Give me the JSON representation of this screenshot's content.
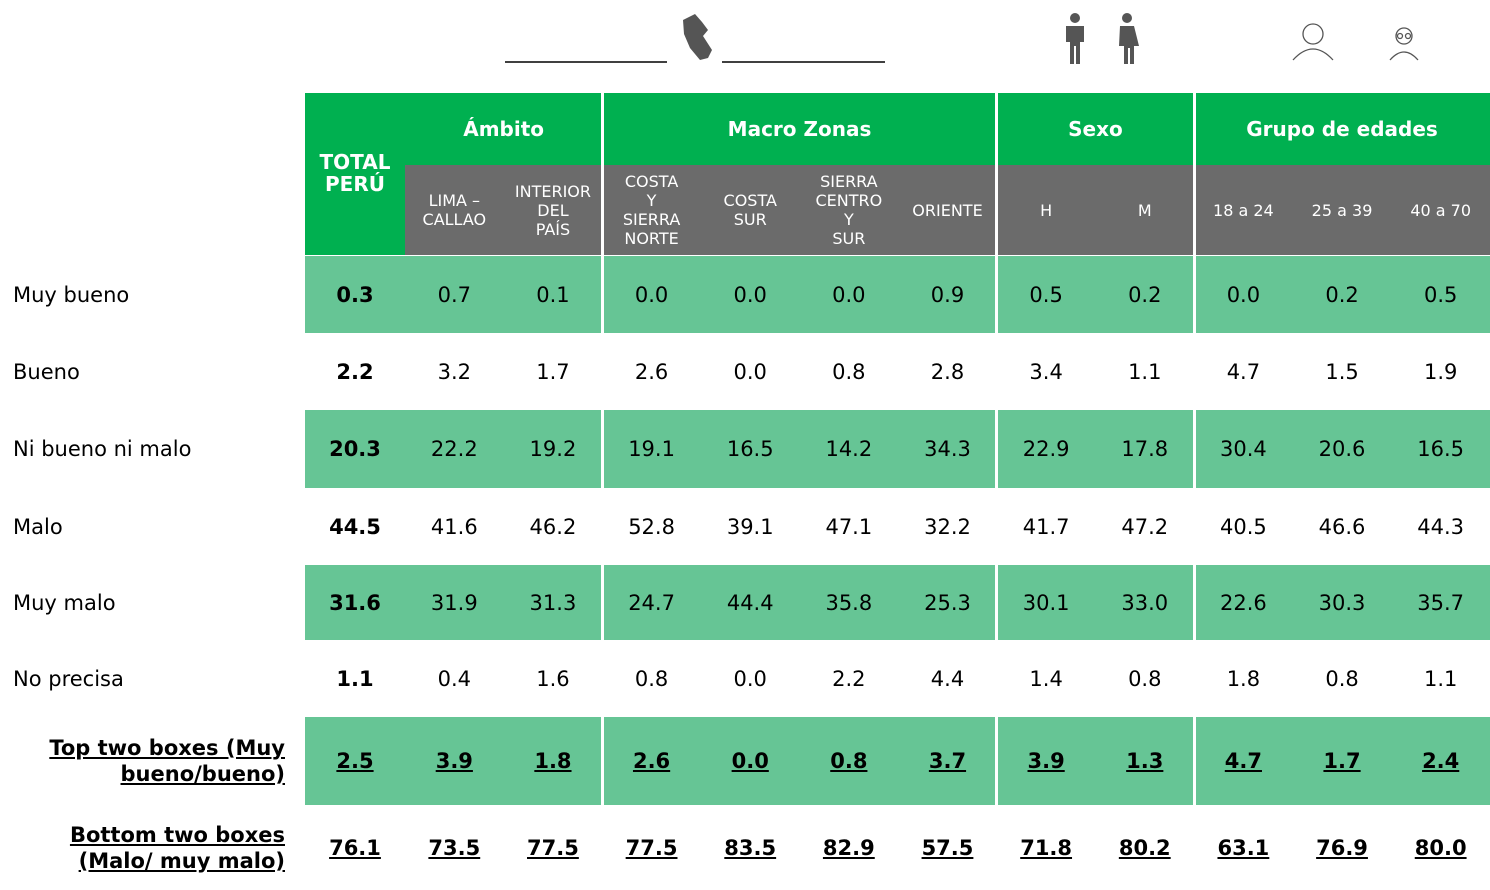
{
  "table": {
    "total_header": "TOTAL PERÚ",
    "groups": [
      {
        "name": "Ámbito",
        "columns": [
          "LIMA –\nCALLAO",
          "INTERIOR\nDEL\nPAÍS"
        ]
      },
      {
        "name": "Macro Zonas",
        "columns": [
          "COSTA\nY\nSIERRA\nNORTE",
          "COSTA\nSUR",
          "SIERRA\nCENTRO\nY\nSUR",
          "ORIENTE"
        ]
      },
      {
        "name": "Sexo",
        "columns": [
          "H",
          "M"
        ]
      },
      {
        "name": "Grupo de edades",
        "columns": [
          "18 a 24",
          "25 a 39",
          "40 a 70"
        ]
      }
    ],
    "rows": [
      {
        "label": "Muy bueno",
        "values": [
          "0.3",
          "0.7",
          "0.1",
          "0.0",
          "0.0",
          "0.0",
          "0.9",
          "0.5",
          "0.2",
          "0.0",
          "0.2",
          "0.5"
        ]
      },
      {
        "label": "Bueno",
        "values": [
          "2.2",
          "3.2",
          "1.7",
          "2.6",
          "0.0",
          "0.8",
          "2.8",
          "3.4",
          "1.1",
          "4.7",
          "1.5",
          "1.9"
        ]
      },
      {
        "label": "Ni bueno ni malo",
        "values": [
          "20.3",
          "22.2",
          "19.2",
          "19.1",
          "16.5",
          "14.2",
          "34.3",
          "22.9",
          "17.8",
          "30.4",
          "20.6",
          "16.5"
        ]
      },
      {
        "label": "Malo",
        "values": [
          "44.5",
          "41.6",
          "46.2",
          "52.8",
          "39.1",
          "47.1",
          "32.2",
          "41.7",
          "47.2",
          "40.5",
          "46.6",
          "44.3"
        ]
      },
      {
        "label": "Muy malo",
        "values": [
          "31.6",
          "31.9",
          "31.3",
          "24.7",
          "44.4",
          "35.8",
          "25.3",
          "30.1",
          "33.0",
          "22.6",
          "30.3",
          "35.7"
        ]
      },
      {
        "label": "No precisa",
        "values": [
          "1.1",
          "0.4",
          "1.6",
          "0.8",
          "0.0",
          "2.2",
          "4.4",
          "1.4",
          "0.8",
          "1.8",
          "0.8",
          "1.1"
        ]
      },
      {
        "label": "Top two boxes (Muy bueno/bueno)",
        "values": [
          "2.5",
          "3.9",
          "1.8",
          "2.6",
          "0.0",
          "0.8",
          "3.7",
          "3.9",
          "1.3",
          "4.7",
          "1.7",
          "2.4"
        ]
      },
      {
        "label": "Bottom two boxes (Malo/ muy malo)",
        "values": [
          "76.1",
          "73.5",
          "77.5",
          "77.5",
          "83.5",
          "82.9",
          "57.5",
          "71.8",
          "80.2",
          "63.1",
          "76.9",
          "80.0"
        ]
      }
    ]
  }
}
